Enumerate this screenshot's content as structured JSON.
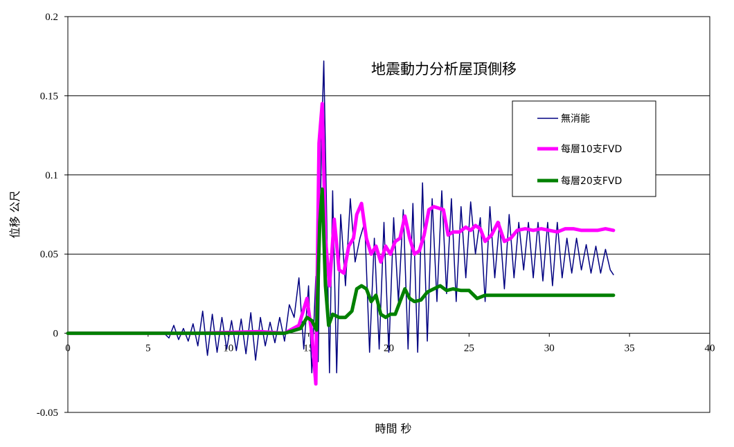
{
  "chart_data": {
    "type": "line",
    "title": "地震動力分析屋頂側移",
    "xlabel": "時間 秒",
    "ylabel": "位移 公尺",
    "xlim": [
      0,
      40
    ],
    "ylim": [
      -0.05,
      0.2
    ],
    "x_ticks": [
      "0",
      "5",
      "10",
      "15",
      "20",
      "25",
      "30",
      "35",
      "40"
    ],
    "y_ticks": [
      "0.2",
      "0.15",
      "0.1",
      "0.05",
      "0",
      "-0.05"
    ],
    "grid": "horizontal",
    "legend_position": "top-right",
    "series": [
      {
        "name": "無消能",
        "color": "#000080",
        "x": [
          0,
          5,
          6.0,
          6.3,
          6.6,
          6.9,
          7.2,
          7.5,
          7.8,
          8.1,
          8.4,
          8.7,
          9.0,
          9.3,
          9.6,
          9.9,
          10.2,
          10.5,
          10.8,
          11.1,
          11.4,
          11.7,
          12.0,
          12.3,
          12.6,
          12.9,
          13.2,
          13.5,
          13.8,
          14.1,
          14.4,
          14.7,
          15.0,
          15.2,
          15.45,
          15.6,
          15.8,
          15.95,
          16.1,
          16.3,
          16.5,
          16.75,
          17.0,
          17.3,
          17.6,
          17.9,
          18.2,
          18.5,
          18.8,
          19.1,
          19.4,
          19.7,
          20.0,
          20.3,
          20.6,
          20.9,
          21.2,
          21.5,
          21.8,
          22.1,
          22.4,
          22.7,
          23.0,
          23.3,
          23.6,
          23.9,
          24.2,
          24.5,
          24.8,
          25.1,
          25.4,
          25.7,
          26.0,
          26.3,
          26.6,
          26.9,
          27.2,
          27.5,
          27.8,
          28.1,
          28.4,
          28.7,
          29.0,
          29.3,
          29.6,
          29.9,
          30.2,
          30.5,
          30.8,
          31.1,
          31.4,
          31.7,
          32.0,
          32.3,
          32.6,
          32.9,
          33.2,
          33.5,
          33.8,
          34.0
        ],
        "values": [
          0,
          0,
          0.0,
          -0.003,
          0.005,
          -0.004,
          0.003,
          -0.005,
          0.006,
          -0.008,
          0.014,
          -0.014,
          0.012,
          -0.012,
          0.01,
          -0.01,
          0.008,
          -0.011,
          0.009,
          -0.013,
          0.013,
          -0.017,
          0.01,
          -0.008,
          0.007,
          -0.006,
          0.01,
          -0.005,
          0.018,
          0.01,
          0.035,
          -0.01,
          0.03,
          -0.025,
          0.036,
          -0.018,
          0.12,
          0.172,
          0.09,
          -0.025,
          0.09,
          -0.025,
          0.075,
          0.03,
          0.085,
          0.045,
          0.06,
          0.07,
          -0.012,
          0.06,
          -0.01,
          0.07,
          -0.012,
          0.073,
          0.02,
          0.078,
          -0.01,
          0.082,
          -0.012,
          0.095,
          -0.005,
          0.085,
          0.02,
          0.09,
          0.025,
          0.085,
          0.02,
          0.08,
          0.035,
          0.083,
          0.05,
          0.073,
          0.02,
          0.08,
          0.035,
          0.07,
          0.028,
          0.075,
          0.035,
          0.07,
          0.04,
          0.07,
          0.035,
          0.07,
          0.033,
          0.07,
          0.03,
          0.07,
          0.035,
          0.06,
          0.038,
          0.06,
          0.04,
          0.056,
          0.038,
          0.055,
          0.038,
          0.053,
          0.04,
          0.037
        ]
      },
      {
        "name": "每層10支FVD",
        "color": "#ff00ff",
        "x": [
          0,
          8,
          12,
          13.5,
          14.4,
          14.9,
          15.2,
          15.45,
          15.65,
          15.85,
          16.05,
          16.3,
          16.6,
          16.9,
          17.2,
          17.5,
          17.8,
          18.0,
          18.3,
          18.6,
          18.9,
          19.2,
          19.5,
          19.8,
          20.1,
          20.4,
          20.7,
          21.0,
          21.3,
          21.6,
          21.9,
          22.2,
          22.5,
          22.8,
          23.1,
          23.4,
          23.7,
          24.0,
          24.4,
          24.8,
          25.1,
          25.4,
          25.7,
          26.0,
          26.4,
          26.8,
          27.2,
          27.6,
          28.0,
          28.5,
          29.0,
          29.5,
          30.0,
          30.5,
          31.0,
          31.5,
          32.0,
          32.5,
          33.0,
          33.5,
          34.0
        ],
        "values": [
          0,
          0,
          0.001,
          0.0,
          0.005,
          0.022,
          0.0,
          -0.032,
          0.12,
          0.145,
          0.06,
          0.03,
          0.072,
          0.04,
          0.038,
          0.055,
          0.06,
          0.075,
          0.082,
          0.06,
          0.05,
          0.055,
          0.045,
          0.055,
          0.05,
          0.058,
          0.06,
          0.074,
          0.06,
          0.05,
          0.052,
          0.062,
          0.078,
          0.08,
          0.079,
          0.078,
          0.062,
          0.064,
          0.064,
          0.067,
          0.065,
          0.068,
          0.066,
          0.058,
          0.062,
          0.07,
          0.058,
          0.06,
          0.065,
          0.066,
          0.065,
          0.066,
          0.065,
          0.064,
          0.066,
          0.066,
          0.065,
          0.065,
          0.065,
          0.066,
          0.065
        ]
      },
      {
        "name": "每層20支FVD",
        "color": "#008000",
        "x": [
          0,
          8,
          12,
          13.5,
          14.5,
          14.9,
          15.2,
          15.5,
          15.7,
          15.85,
          16.05,
          16.25,
          16.5,
          16.9,
          17.3,
          17.7,
          18.0,
          18.3,
          18.6,
          18.9,
          19.2,
          19.5,
          19.8,
          20.1,
          20.4,
          20.7,
          21.0,
          21.3,
          21.6,
          22.0,
          22.4,
          22.8,
          23.2,
          23.6,
          24.0,
          24.5,
          25.0,
          25.5,
          26.0,
          26.5,
          27.0,
          28.0,
          29.0,
          30.0,
          31.0,
          32.0,
          33.0,
          34.0
        ],
        "values": [
          0,
          0,
          0.0,
          0.0,
          0.003,
          0.01,
          0.008,
          0.002,
          0.07,
          0.091,
          0.03,
          0.005,
          0.012,
          0.01,
          0.01,
          0.014,
          0.028,
          0.03,
          0.028,
          0.02,
          0.024,
          0.012,
          0.01,
          0.012,
          0.012,
          0.02,
          0.028,
          0.022,
          0.02,
          0.021,
          0.026,
          0.028,
          0.03,
          0.027,
          0.028,
          0.027,
          0.027,
          0.022,
          0.024,
          0.024,
          0.024,
          0.024,
          0.024,
          0.024,
          0.024,
          0.024,
          0.024,
          0.024
        ]
      }
    ]
  }
}
